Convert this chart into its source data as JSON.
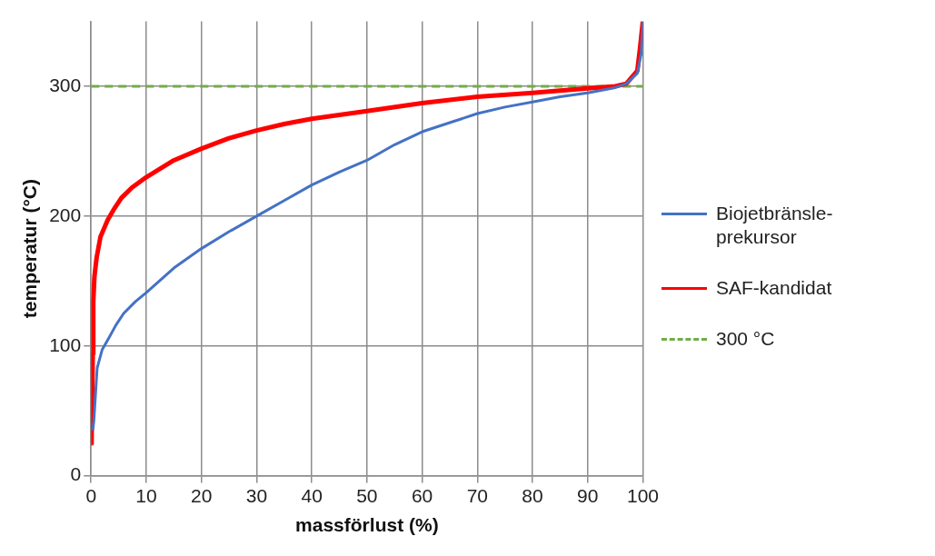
{
  "chart_data": {
    "type": "line",
    "xlabel": "massförlust (%)",
    "ylabel": "temperatur (°C)",
    "xlim": [
      0,
      100
    ],
    "xticks": [
      0,
      10,
      20,
      30,
      40,
      50,
      60,
      70,
      80,
      90,
      100
    ],
    "ylim": [
      0,
      350
    ],
    "yticks": [
      0,
      100,
      200,
      300
    ],
    "grid": true,
    "legend": "right",
    "marker": "none",
    "series": [
      {
        "name": "Biojetbränsle-prekursor",
        "color": "#4472c4",
        "line_style": "solid",
        "x": [
          0.3,
          0.5,
          1.1,
          2,
          3.2,
          4.5,
          5.9,
          8,
          10,
          15,
          20,
          25,
          30,
          35,
          40,
          45,
          50,
          55,
          60,
          65,
          70,
          75,
          80,
          85,
          90,
          95,
          97,
          99,
          99.7,
          100
        ],
        "values": [
          35,
          42,
          83,
          97,
          106,
          116,
          125,
          134,
          141,
          160,
          175,
          188,
          200,
          212,
          224,
          234,
          243,
          255,
          265,
          272,
          279,
          284,
          288,
          292,
          295,
          299,
          302,
          310,
          325,
          350
        ]
      },
      {
        "name": "SAF-kandidat",
        "color": "#ff0000",
        "line_style": "solid",
        "x": [
          0,
          0.1,
          0.3,
          0.4,
          0.6,
          1,
          1.7,
          3,
          4.1,
          5.5,
          7.4,
          10,
          15,
          20,
          25,
          30,
          35,
          40,
          50,
          60,
          70,
          80,
          90,
          95,
          97,
          99,
          99.5,
          100
        ],
        "values": [
          25,
          30,
          94,
          134,
          153,
          168,
          184,
          197,
          205,
          214,
          222,
          230,
          243,
          252,
          260,
          266,
          271,
          275,
          281,
          287,
          292,
          295,
          298.5,
          300,
          302,
          312,
          330,
          350
        ]
      },
      {
        "name": "300 °C",
        "color": "#70ad47",
        "line_style": "dashed",
        "x": [
          0,
          100
        ],
        "values": [
          300,
          300
        ]
      }
    ]
  }
}
